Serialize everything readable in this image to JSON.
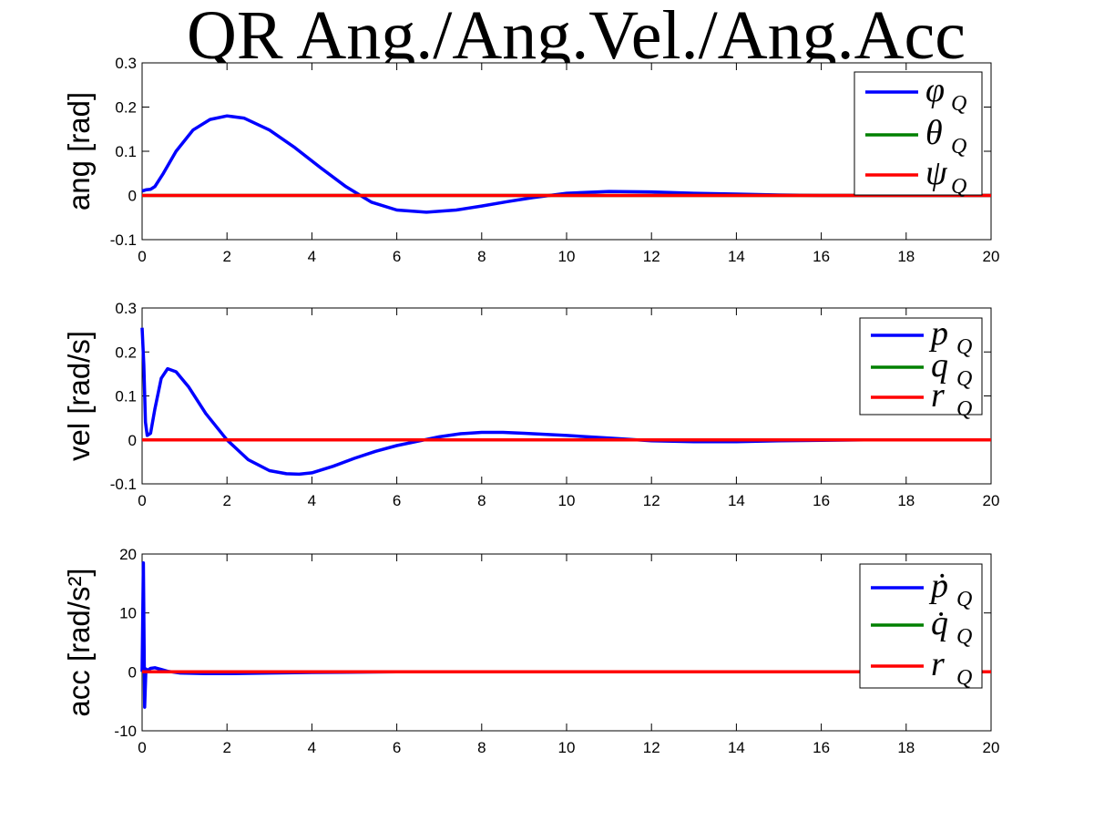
{
  "title": "QR Ang./Ang.Vel./Ang.Acc",
  "chart_data": [
    {
      "type": "line",
      "ylabel": "ang [rad]",
      "xlim": [
        0,
        20
      ],
      "ylim": [
        -0.1,
        0.3
      ],
      "xticks": [
        "0",
        "2",
        "4",
        "6",
        "8",
        "10",
        "12",
        "14",
        "16",
        "18",
        "20"
      ],
      "yticks": [
        "-0.1",
        "0",
        "0.1",
        "0.2",
        "0.3"
      ],
      "legend_position": "top-right",
      "series": [
        {
          "name": "φ",
          "sub": "Q",
          "color": "#0000ff",
          "x": [
            0,
            0.1,
            0.2,
            0.3,
            0.5,
            0.8,
            1.2,
            1.6,
            2.0,
            2.4,
            3.0,
            3.6,
            4.2,
            4.8,
            5.4,
            6.0,
            6.7,
            7.4,
            8.0,
            8.6,
            9.2,
            10.0,
            11.0,
            12.0,
            13.0,
            14.0,
            15.0,
            16.0,
            17.0,
            18.0,
            19.0,
            20.0
          ],
          "y": [
            0.01,
            0.013,
            0.014,
            0.02,
            0.05,
            0.1,
            0.148,
            0.172,
            0.18,
            0.175,
            0.148,
            0.108,
            0.063,
            0.02,
            -0.015,
            -0.033,
            -0.038,
            -0.033,
            -0.024,
            -0.014,
            -0.005,
            0.005,
            0.009,
            0.008,
            0.005,
            0.003,
            0.001,
            0.0,
            0.0,
            0.0,
            0.0,
            0.0
          ]
        },
        {
          "name": "θ",
          "sub": "Q",
          "color": "#008000",
          "x": [
            0,
            20
          ],
          "y": [
            0,
            0
          ]
        },
        {
          "name": "ψ",
          "sub": "Q",
          "color": "#ff0000",
          "x": [
            0,
            20
          ],
          "y": [
            0,
            0
          ]
        }
      ]
    },
    {
      "type": "line",
      "ylabel": "vel [rad/s]",
      "xlim": [
        0,
        20
      ],
      "ylim": [
        -0.1,
        0.3
      ],
      "xticks": [
        "0",
        "2",
        "4",
        "6",
        "8",
        "10",
        "12",
        "14",
        "16",
        "18",
        "20"
      ],
      "yticks": [
        "-0.1",
        "0",
        "0.1",
        "0.2",
        "0.3"
      ],
      "legend_position": "top-right",
      "series": [
        {
          "name": "p",
          "sub": "Q",
          "color": "#0000ff",
          "x": [
            0.0,
            0.04,
            0.08,
            0.12,
            0.2,
            0.3,
            0.45,
            0.6,
            0.8,
            1.1,
            1.5,
            2.0,
            2.5,
            3.0,
            3.4,
            3.7,
            4.0,
            4.5,
            5.0,
            5.5,
            6.0,
            6.5,
            7.0,
            7.5,
            8.0,
            8.5,
            9.0,
            10.0,
            11.0,
            12.0,
            13.0,
            14.0,
            15.0,
            16.0,
            17.0,
            18.0,
            20.0
          ],
          "y": [
            0.255,
            0.17,
            0.04,
            0.01,
            0.015,
            0.07,
            0.14,
            0.162,
            0.155,
            0.12,
            0.06,
            0.0,
            -0.045,
            -0.07,
            -0.077,
            -0.078,
            -0.075,
            -0.06,
            -0.042,
            -0.026,
            -0.013,
            -0.003,
            0.007,
            0.014,
            0.017,
            0.017,
            0.015,
            0.01,
            0.004,
            -0.002,
            -0.004,
            -0.004,
            -0.002,
            -0.001,
            0.0,
            0.0,
            0.0
          ]
        },
        {
          "name": "q",
          "sub": "Q",
          "color": "#008000",
          "x": [
            0,
            20
          ],
          "y": [
            0,
            0
          ]
        },
        {
          "name": "r",
          "sub": "Q",
          "color": "#ff0000",
          "x": [
            0,
            20
          ],
          "y": [
            0,
            0
          ]
        }
      ]
    },
    {
      "type": "line",
      "ylabel": "acc [rad/s²]",
      "xlim": [
        0,
        20
      ],
      "ylim": [
        -10,
        20
      ],
      "xticks": [
        "0",
        "2",
        "4",
        "6",
        "8",
        "10",
        "12",
        "14",
        "16",
        "18",
        "20"
      ],
      "yticks": [
        "-10",
        "0",
        "10",
        "20"
      ],
      "legend_position": "top-right",
      "series": [
        {
          "name": "ṗ",
          "sub": "Q",
          "color": "#0000ff",
          "x": [
            0.0,
            0.03,
            0.06,
            0.09,
            0.12,
            0.2,
            0.3,
            0.45,
            0.6,
            0.9,
            1.5,
            2.0,
            3.0,
            4.0,
            6.0,
            10.0,
            20.0
          ],
          "y": [
            0.0,
            18.5,
            -6.0,
            0.5,
            0.2,
            0.6,
            0.7,
            0.4,
            0.1,
            -0.2,
            -0.3,
            -0.3,
            -0.2,
            -0.1,
            0.0,
            0.0,
            0.0
          ]
        },
        {
          "name": "q̇",
          "sub": "Q",
          "color": "#008000",
          "x": [
            0,
            20
          ],
          "y": [
            0,
            0
          ]
        },
        {
          "name": "r",
          "sub": "Q",
          "color": "#ff0000",
          "x": [
            0,
            20
          ],
          "y": [
            0,
            0
          ]
        }
      ]
    }
  ]
}
